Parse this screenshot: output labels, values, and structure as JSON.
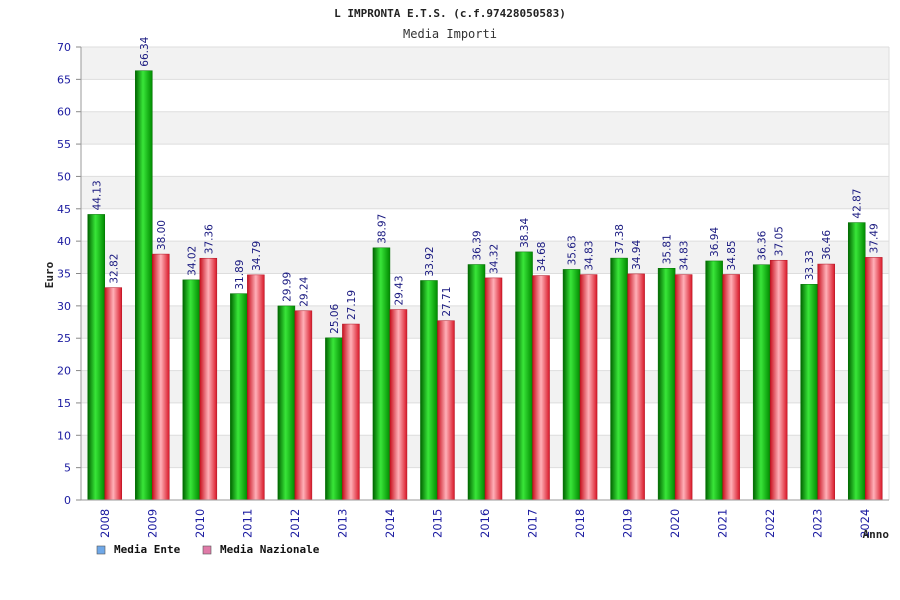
{
  "chart_data": {
    "type": "bar",
    "title": "L IMPRONTA E.T.S. (c.f.97428050583)",
    "subtitle": "Media Importi",
    "ylabel": "Euro",
    "xlabel": "Anno",
    "ylim": [
      0,
      70
    ],
    "yticks": [
      "0",
      "5",
      "10",
      "15",
      "20",
      "25",
      "30",
      "35",
      "40",
      "45",
      "50",
      "55",
      "60",
      "65",
      "70"
    ],
    "grid": true,
    "legend_position": "bottom-left",
    "categories": [
      "2008",
      "2009",
      "2010",
      "2011",
      "2012",
      "2013",
      "2014",
      "2015",
      "2016",
      "2017",
      "2018",
      "2019",
      "2020",
      "2021",
      "2022",
      "2023",
      "2024"
    ],
    "series": [
      {
        "name": "Media Ente",
        "color": "#00a800",
        "legend_color": "#6fa8e8",
        "values": [
          44.13,
          66.34,
          34.02,
          31.89,
          29.99,
          25.06,
          38.97,
          33.92,
          36.39,
          38.34,
          35.63,
          37.38,
          35.81,
          36.94,
          36.36,
          33.33,
          42.87
        ],
        "labels": [
          "44.13",
          "66.34",
          "34.02",
          "31.89",
          "29.99",
          "25.06",
          "38.97",
          "33.92",
          "36.39",
          "38.34",
          "35.63",
          "37.38",
          "35.81",
          "36.94",
          "36.36",
          "33.33",
          "42.87"
        ]
      },
      {
        "name": "Media Nazionale",
        "color": "#e8202e",
        "legend_color": "#e07aa8",
        "values": [
          32.82,
          38.0,
          37.36,
          34.79,
          29.24,
          27.19,
          29.43,
          27.71,
          34.32,
          34.68,
          34.83,
          34.94,
          34.83,
          34.85,
          37.05,
          36.46,
          37.49
        ],
        "labels": [
          "32.82",
          "38.00",
          "37.36",
          "34.79",
          "29.24",
          "27.19",
          "29.43",
          "27.71",
          "34.32",
          "34.68",
          "34.83",
          "34.94",
          "34.83",
          "34.85",
          "37.05",
          "36.46",
          "37.49"
        ]
      }
    ]
  }
}
